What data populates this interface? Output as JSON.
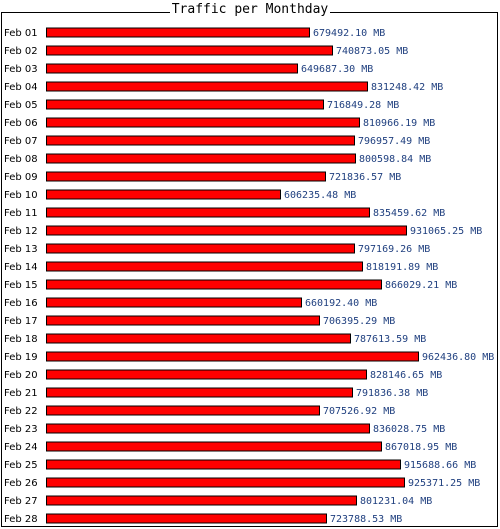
{
  "chart_data": {
    "type": "bar",
    "orientation": "horizontal",
    "title": "Traffic per Monthday",
    "unit": "MB",
    "categories": [
      "Feb 01",
      "Feb 02",
      "Feb 03",
      "Feb 04",
      "Feb 05",
      "Feb 06",
      "Feb 07",
      "Feb 08",
      "Feb 09",
      "Feb 10",
      "Feb 11",
      "Feb 12",
      "Feb 13",
      "Feb 14",
      "Feb 15",
      "Feb 16",
      "Feb 17",
      "Feb 18",
      "Feb 19",
      "Feb 20",
      "Feb 21",
      "Feb 22",
      "Feb 23",
      "Feb 24",
      "Feb 25",
      "Feb 26",
      "Feb 27",
      "Feb 28"
    ],
    "values": [
      679492.1,
      740873.05,
      649687.3,
      831248.42,
      716849.28,
      810966.19,
      796957.49,
      800598.84,
      721836.57,
      606235.48,
      835459.62,
      931065.25,
      797169.26,
      818191.89,
      866029.21,
      660192.4,
      706395.29,
      787613.59,
      962436.8,
      828146.65,
      791836.38,
      707526.92,
      836028.75,
      867018.95,
      915688.66,
      925371.25,
      801231.04,
      723788.53
    ],
    "value_labels": [
      "679492.10 MB",
      "740873.05 MB",
      "649687.30 MB",
      "831248.42 MB",
      "716849.28 MB",
      "810966.19 MB",
      "796957.49 MB",
      "800598.84 MB",
      "721836.57 MB",
      "606235.48 MB",
      "835459.62 MB",
      "931065.25 MB",
      "797169.26 MB",
      "818191.89 MB",
      "866029.21 MB",
      "660192.40 MB",
      "706395.29 MB",
      "787613.59 MB",
      "962436.80 MB",
      "828146.65 MB",
      "791836.38 MB",
      "707526.92 MB",
      "836028.75 MB",
      "867018.95 MB",
      "915688.66 MB",
      "925371.25 MB",
      "801231.04 MB",
      "723788.53 MB"
    ],
    "grid": false,
    "legend": "none",
    "colors": {
      "bar": "#ff0000",
      "bar_outline": "#000000",
      "value_text": "#1f3f7f"
    }
  }
}
